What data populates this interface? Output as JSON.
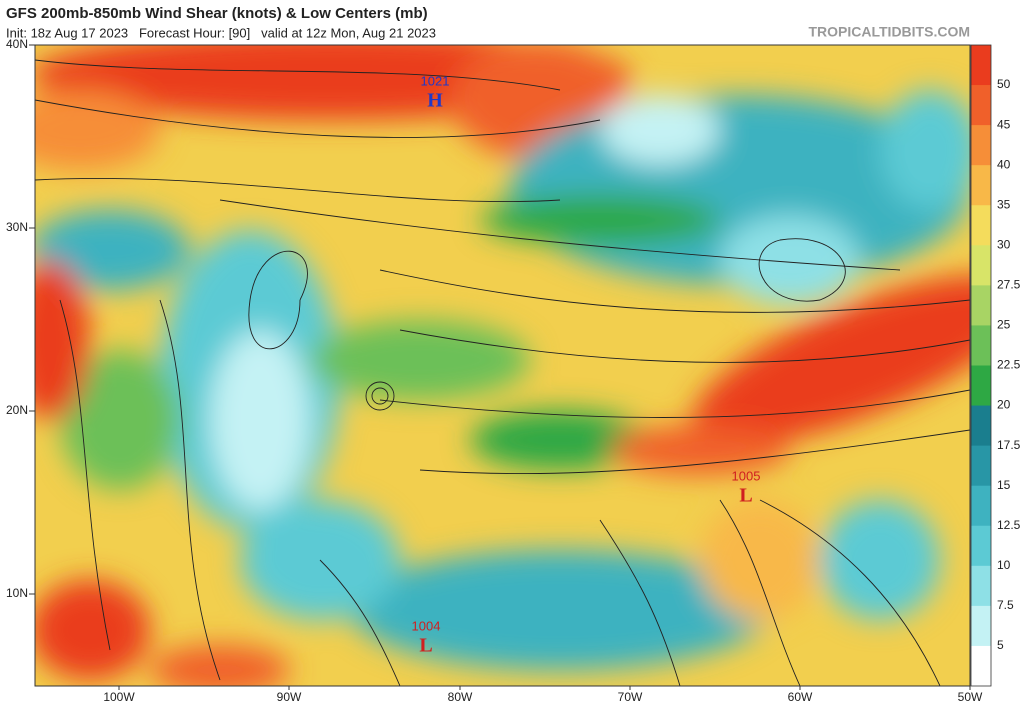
{
  "header": {
    "title": "GFS 200mb-850mb Wind Shear (knots) & Low Centers (mb)",
    "subtitle": "Init: 18z Aug 17 2023   Forecast Hour: [90]   valid at 12z Mon, Aug 21 2023",
    "source": "TROPICALTIDBITS.COM"
  },
  "map": {
    "lat_labels": [
      "40N",
      "30N",
      "20N",
      "10N"
    ],
    "lon_labels": [
      "100W",
      "90W",
      "80W",
      "70W",
      "60W",
      "50W"
    ],
    "centers": [
      {
        "pressure": "1021",
        "letter": "H",
        "color": "#2038c8"
      },
      {
        "pressure": "1005",
        "letter": "L",
        "color": "#d02020"
      },
      {
        "pressure": "1004",
        "letter": "L",
        "color": "#d02020"
      }
    ]
  },
  "colorbar": {
    "labels": [
      50,
      45,
      40,
      35,
      30,
      27.5,
      25,
      22.5,
      20,
      17.5,
      15,
      12.5,
      10,
      7.5,
      5
    ],
    "colors": [
      "#ea3c1e",
      "#f0602a",
      "#f68e38",
      "#f8b848",
      "#f4dc5c",
      "#d8e468",
      "#a8d464",
      "#6cc058",
      "#2ea844",
      "#1a7e8e",
      "#2896a6",
      "#3eb2c0",
      "#5ccad4",
      "#8ee0e6",
      "#c4f2f4",
      "#ffffff"
    ]
  }
}
